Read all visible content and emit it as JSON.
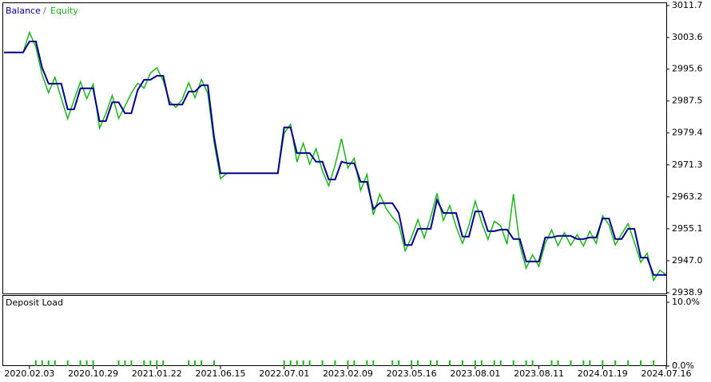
{
  "chart_data": [
    {
      "type": "line",
      "legend_separator": "/",
      "categories": [
        null,
        null,
        null,
        null,
        "2020.02.03",
        null,
        null,
        null,
        null,
        null,
        null,
        null,
        null,
        null,
        "2020.10.29",
        null,
        null,
        null,
        null,
        null,
        null,
        null,
        null,
        null,
        "2021.01.22",
        null,
        null,
        null,
        null,
        null,
        null,
        null,
        null,
        null,
        "2021.06.15",
        null,
        null,
        null,
        null,
        null,
        null,
        null,
        null,
        null,
        "2022.07.01",
        null,
        null,
        null,
        null,
        null,
        null,
        null,
        null,
        null,
        "2023.02.09",
        null,
        null,
        null,
        null,
        null,
        null,
        null,
        null,
        null,
        "2023.05.16",
        null,
        null,
        null,
        null,
        null,
        null,
        null,
        null,
        null,
        "2023.08.01",
        null,
        null,
        null,
        null,
        null,
        null,
        null,
        null,
        null,
        "2023.08.11",
        null,
        null,
        null,
        null,
        null,
        null,
        null,
        null,
        null,
        "2024.01.19",
        null,
        null,
        null,
        null,
        null,
        null,
        null,
        null,
        null,
        "2024.07.16"
      ],
      "series": [
        {
          "name": "Equity",
          "color": "#1db31d",
          "values": [
            2999.8,
            2999.8,
            2999.8,
            2999.8,
            3004.9,
            3001.2,
            2994.1,
            2989.6,
            2993.5,
            2988.2,
            2983.0,
            2987.8,
            2992.4,
            2988.1,
            2991.8,
            2980.6,
            2984.3,
            2988.9,
            2983.1,
            2986.2,
            2989.5,
            2992.0,
            2990.8,
            2994.6,
            2995.9,
            2992.7,
            2987.4,
            2985.9,
            2988.0,
            2992.1,
            2988.3,
            2993.0,
            2989.4,
            2977.0,
            2967.8,
            2969.2,
            2969.2,
            2969.2,
            2969.2,
            2969.2,
            2969.2,
            2969.2,
            2969.2,
            2969.2,
            2979.3,
            2981.6,
            2972.0,
            2976.8,
            2971.5,
            2975.4,
            2969.8,
            2966.0,
            2971.3,
            2977.9,
            2970.5,
            2973.0,
            2964.8,
            2968.9,
            2958.6,
            2963.9,
            2960.3,
            2958.0,
            2956.2,
            2949.5,
            2953.0,
            2957.4,
            2952.8,
            2958.0,
            2964.1,
            2957.2,
            2961.0,
            2955.6,
            2951.4,
            2955.9,
            2962.1,
            2956.8,
            2952.4,
            2957.0,
            2955.8,
            2951.2,
            2963.9,
            2951.0,
            2945.1,
            2948.5,
            2945.6,
            2951.4,
            2954.8,
            2950.8,
            2954.1,
            2950.9,
            2953.6,
            2950.7,
            2954.5,
            2951.4,
            2958.4,
            2956.1,
            2951.0,
            2953.8,
            2956.4,
            2951.7,
            2946.6,
            2948.9,
            2942.0,
            2944.6,
            2943.4
          ]
        },
        {
          "name": "Balance",
          "color": "#00008b",
          "values": [
            2999.8,
            2999.8,
            2999.8,
            2999.8,
            3002.6,
            3002.6,
            2995.9,
            2991.9,
            2991.9,
            2991.9,
            2985.4,
            2985.4,
            2990.7,
            2990.7,
            2990.7,
            2982.4,
            2982.4,
            2987.2,
            2987.2,
            2984.4,
            2984.4,
            2990.3,
            2992.9,
            2992.9,
            2993.9,
            2993.9,
            2986.6,
            2986.6,
            2986.6,
            2989.9,
            2989.9,
            2991.5,
            2991.5,
            2978.3,
            2969.2,
            2969.2,
            2969.2,
            2969.2,
            2969.2,
            2969.2,
            2969.2,
            2969.2,
            2969.2,
            2969.2,
            2980.8,
            2980.8,
            2974.3,
            2974.3,
            2974.3,
            2972.1,
            2972.1,
            2967.6,
            2967.6,
            2972.1,
            2971.7,
            2971.7,
            2967.0,
            2967.0,
            2960.1,
            2961.6,
            2961.6,
            2961.6,
            2959.1,
            2951.0,
            2951.0,
            2955.1,
            2955.1,
            2955.1,
            2962.4,
            2959.1,
            2959.1,
            2959.1,
            2953.1,
            2953.1,
            2959.5,
            2959.5,
            2954.5,
            2954.5,
            2954.9,
            2954.9,
            2952.5,
            2952.5,
            2946.8,
            2946.8,
            2946.8,
            2952.9,
            2952.9,
            2953.3,
            2953.3,
            2953.3,
            2952.5,
            2952.5,
            2952.9,
            2952.9,
            2957.7,
            2957.7,
            2952.5,
            2952.5,
            2955.1,
            2955.1,
            2947.8,
            2947.8,
            2943.4,
            2943.4,
            2943.4
          ]
        }
      ],
      "ylim": [
        2938.9,
        3011.7
      ],
      "yticks": [
        3011.7,
        3003.6,
        2995.6,
        2987.5,
        2979.4,
        2971.3,
        2963.2,
        2955.1,
        {
          "value": 2947,
          "label": "2947.0"
        },
        2938.9
      ]
    },
    {
      "type": "bar",
      "title": "Deposit Load",
      "color": "#1db31d",
      "values": [
        0,
        0,
        0,
        0,
        0,
        0.9,
        0.9,
        0.9,
        0.9,
        0,
        0.9,
        0,
        0.9,
        0.9,
        0.9,
        0,
        0,
        0,
        0.9,
        0.9,
        0.9,
        0,
        0.9,
        0.9,
        0.9,
        0.9,
        0,
        0,
        0,
        0.9,
        0.9,
        0.9,
        0,
        0.9,
        0,
        0,
        0,
        0,
        0,
        0,
        0,
        0,
        0,
        0,
        0.9,
        0.9,
        0.9,
        0.9,
        0.9,
        0,
        0.9,
        0,
        0.9,
        0,
        0.9,
        0.9,
        0,
        0.9,
        0.9,
        0,
        0,
        0.9,
        0.9,
        0,
        0.9,
        0.9,
        0,
        0.9,
        0.9,
        0,
        0.9,
        0,
        0.9,
        0,
        0.9,
        0.9,
        0,
        0.9,
        0.9,
        0,
        0.9,
        0,
        0.9,
        0.9,
        0,
        0,
        0.9,
        0.9,
        0,
        0.9,
        0,
        0.9,
        0.9,
        0,
        0.9,
        0,
        0.9,
        0,
        0.9,
        0,
        0.9,
        0,
        0.9,
        0,
        0
      ],
      "ylim": [
        0,
        10
      ],
      "yticks": [
        {
          "value": 10,
          "label": "10.0%"
        },
        {
          "value": 0,
          "label": "0.0%"
        }
      ]
    }
  ]
}
